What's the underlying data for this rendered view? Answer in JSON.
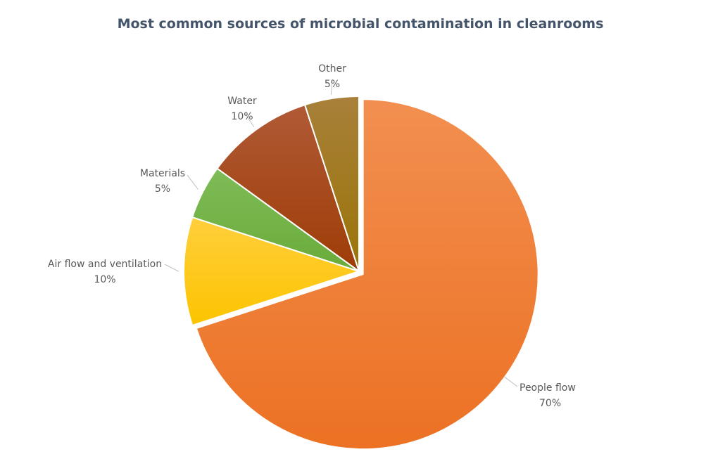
{
  "chart_data": {
    "type": "pie",
    "title": "Most common sources of microbial contamination in cleanrooms",
    "slices": [
      {
        "label": "People flow",
        "value": 70,
        "value_label": "70%",
        "color": "#ec7123",
        "color_light": "#f28f50",
        "exploded": true
      },
      {
        "label": "Air flow and ventilation",
        "value": 10,
        "value_label": "10%",
        "color": "#fcc400",
        "color_light": "#ffcf3c",
        "exploded": false
      },
      {
        "label": "Materials",
        "value": 5,
        "value_label": "5%",
        "color": "#6aab3a",
        "color_light": "#7ebc57",
        "exploded": false
      },
      {
        "label": "Water",
        "value": 10,
        "value_label": "10%",
        "color": "#9e3c06",
        "color_light": "#b05a36",
        "exploded": false
      },
      {
        "label": "Other",
        "value": 5,
        "value_label": "5%",
        "color": "#9b7407",
        "color_light": "#a8803a",
        "exploded": false
      }
    ],
    "legend": "none",
    "start_angle_deg": 0,
    "direction": "clockwise"
  }
}
